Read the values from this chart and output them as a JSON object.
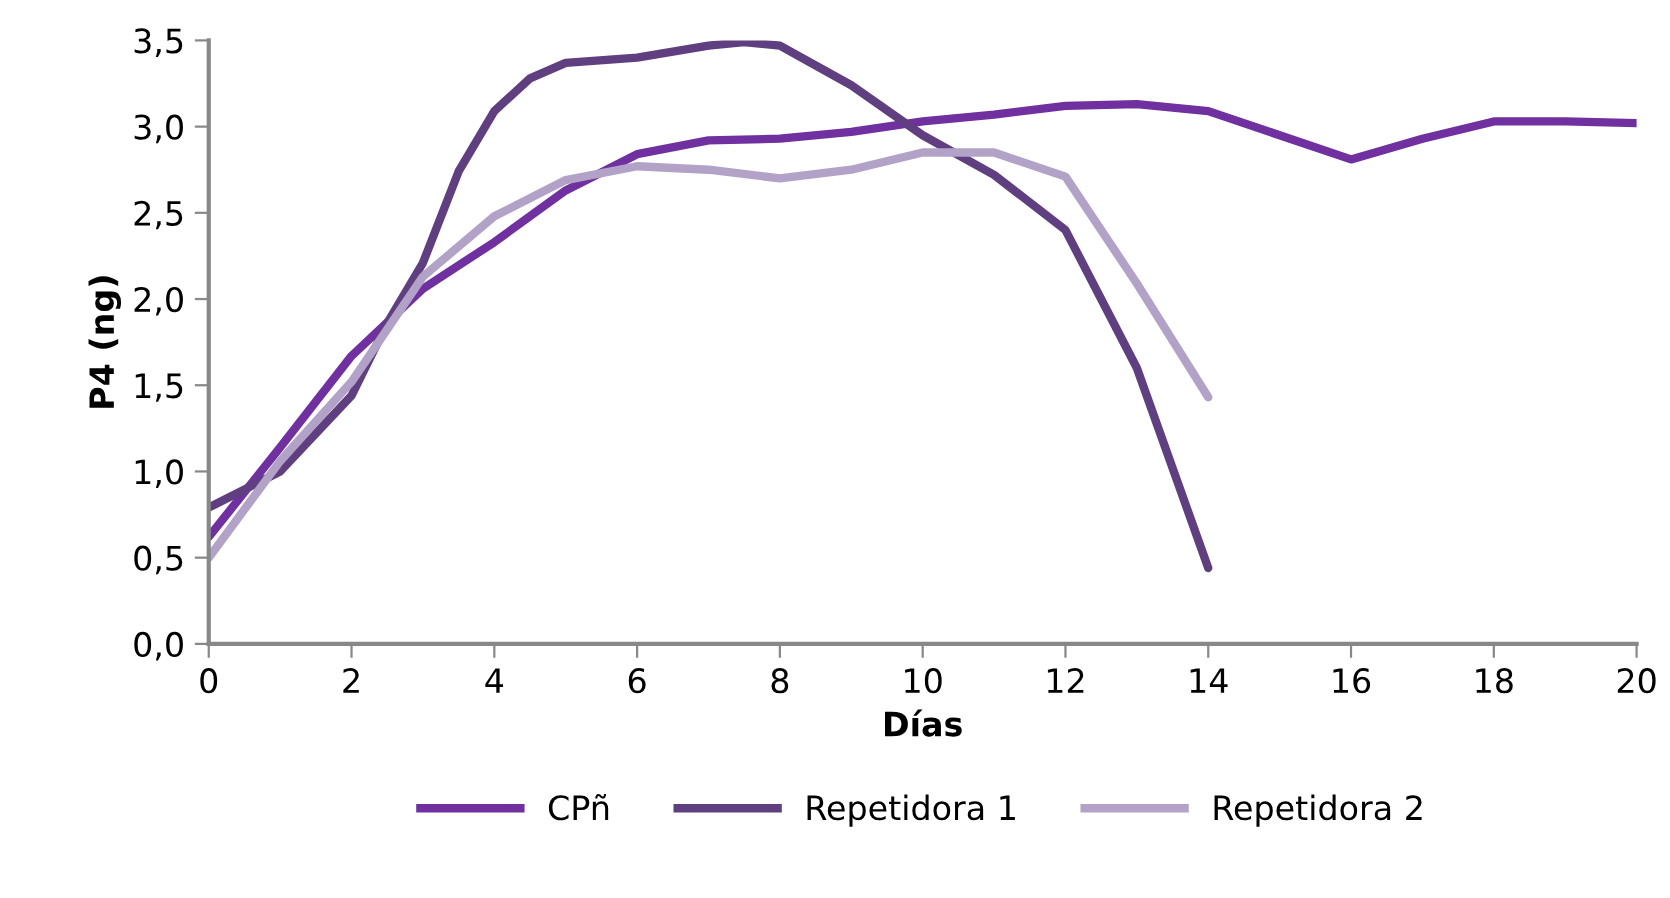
{
  "chart_data": {
    "type": "line",
    "xlabel": "Días",
    "ylabel": "P4 (ng)",
    "xlim": [
      0,
      20
    ],
    "xticks": [
      0,
      2,
      4,
      6,
      8,
      10,
      12,
      14,
      16,
      18,
      20
    ],
    "ylim": [
      0,
      3.5
    ],
    "yticks": [
      {
        "value": 0,
        "label": "0,0"
      },
      {
        "value": 0.5,
        "label": "0,5"
      },
      {
        "value": 1,
        "label": "1,0"
      },
      {
        "value": 1.5,
        "label": "1,5"
      },
      {
        "value": 2,
        "label": "2,0"
      },
      {
        "value": 2.5,
        "label": "2,5"
      },
      {
        "value": 3,
        "label": "3,0"
      },
      {
        "value": 3.5,
        "label": "3,5"
      }
    ],
    "grid": false,
    "legend": "bottom",
    "marker": "none",
    "line_style": "solid",
    "series": [
      {
        "name": "CPñ",
        "color": "#7030a0",
        "x": [
          0,
          1,
          2,
          3,
          4,
          5,
          6,
          7,
          8,
          9,
          10,
          11,
          12,
          13,
          14,
          15,
          16,
          17,
          18,
          19,
          20
        ],
        "values": [
          0.62,
          1.14,
          1.67,
          2.06,
          2.33,
          2.63,
          2.84,
          2.92,
          2.93,
          2.97,
          3.03,
          3.07,
          3.12,
          3.13,
          3.09,
          2.95,
          2.81,
          2.93,
          3.03,
          3.03,
          3.02
        ]
      },
      {
        "name": "Repetidora 1",
        "color": "#5f3f7f",
        "x": [
          0,
          1,
          2,
          2.5,
          3,
          3.5,
          4,
          4.5,
          5,
          6,
          7,
          7.5,
          8,
          9,
          10,
          11,
          12,
          13,
          14
        ],
        "values": [
          0.79,
          1.0,
          1.44,
          1.86,
          2.21,
          2.74,
          3.09,
          3.28,
          3.37,
          3.4,
          3.47,
          3.49,
          3.47,
          3.24,
          2.95,
          2.72,
          2.4,
          1.6,
          0.44
        ]
      },
      {
        "name": "Repetidora 2",
        "color": "#b3a2c7",
        "x": [
          0,
          1,
          2,
          3,
          4,
          5,
          6,
          7,
          8,
          9,
          10,
          11,
          12,
          13,
          14
        ],
        "values": [
          0.5,
          1.06,
          1.52,
          2.13,
          2.48,
          2.69,
          2.77,
          2.75,
          2.7,
          2.75,
          2.85,
          2.85,
          2.71,
          2.09,
          1.43
        ]
      }
    ]
  }
}
